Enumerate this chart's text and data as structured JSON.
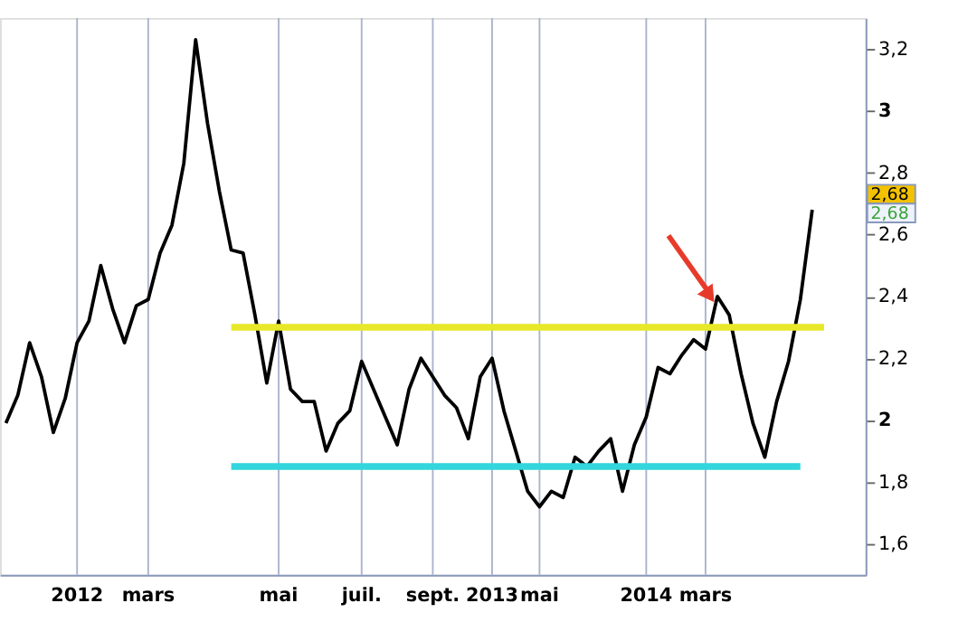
{
  "chart_data": {
    "type": "line",
    "categories": [
      null,
      null,
      null,
      null,
      null,
      null,
      "2012",
      null,
      null,
      null,
      null,
      null,
      "mars",
      null,
      null,
      null,
      null,
      null,
      null,
      null,
      null,
      null,
      null,
      "mai",
      null,
      null,
      null,
      null,
      null,
      null,
      "juil.",
      null,
      null,
      null,
      null,
      null,
      "sept.",
      null,
      null,
      null,
      null,
      "2013",
      null,
      null,
      null,
      "mai",
      null,
      null,
      null,
      null,
      null,
      null,
      null,
      null,
      "2014",
      null,
      null,
      null,
      null,
      "mars",
      null,
      null,
      null,
      null,
      null,
      null,
      null,
      null,
      null,
      null,
      null,
      null,
      null
    ],
    "series": [
      {
        "color": "#000000",
        "values": [
          1.99,
          2.08,
          2.25,
          2.14,
          1.96,
          2.07,
          2.25,
          2.32,
          2.5,
          2.36,
          2.25,
          2.37,
          2.39,
          2.54,
          2.63,
          2.83,
          3.23,
          2.96,
          2.74,
          2.55,
          2.54,
          2.34,
          2.12,
          2.32,
          2.1,
          2.06,
          2.06,
          1.9,
          1.99,
          2.03,
          2.19,
          2.1,
          2.01,
          1.92,
          2.1,
          2.2,
          2.14,
          2.08,
          2.04,
          1.94,
          2.14,
          2.2,
          2.03,
          1.9,
          1.77,
          1.72,
          1.77,
          1.75,
          1.88,
          1.85,
          1.9,
          1.94,
          1.77,
          1.92,
          2.01,
          2.17,
          2.15,
          2.21,
          2.26,
          2.23,
          2.4,
          2.34,
          2.15,
          1.99,
          1.88,
          2.06,
          2.19,
          2.39,
          2.68,
          null,
          null,
          null,
          null
        ]
      },
      {
        "color": "#e8e82a",
        "values": [
          null,
          null,
          null,
          null,
          null,
          null,
          null,
          null,
          null,
          null,
          null,
          null,
          null,
          null,
          null,
          null,
          null,
          null,
          null,
          2.3,
          2.3,
          2.3,
          2.3,
          2.3,
          2.3,
          2.3,
          2.3,
          2.3,
          2.3,
          2.3,
          2.3,
          2.3,
          2.3,
          2.3,
          2.3,
          2.3,
          2.3,
          2.3,
          2.3,
          2.3,
          2.3,
          2.3,
          2.3,
          2.3,
          2.3,
          2.3,
          2.3,
          2.3,
          2.3,
          2.3,
          2.3,
          2.3,
          2.3,
          2.3,
          2.3,
          2.3,
          2.3,
          2.3,
          2.3,
          2.3,
          2.3,
          2.3,
          2.3,
          2.3,
          2.3,
          2.3,
          2.3,
          2.3,
          2.3,
          2.3,
          null,
          null,
          null
        ]
      },
      {
        "color": "#33d6dc",
        "values": [
          null,
          null,
          null,
          null,
          null,
          null,
          null,
          null,
          null,
          null,
          null,
          null,
          null,
          null,
          null,
          null,
          null,
          null,
          null,
          1.85,
          1.85,
          1.85,
          1.85,
          1.85,
          1.85,
          1.85,
          1.85,
          1.85,
          1.85,
          1.85,
          1.85,
          1.85,
          1.85,
          1.85,
          1.85,
          1.85,
          1.85,
          1.85,
          1.85,
          1.85,
          1.85,
          1.85,
          1.85,
          1.85,
          1.85,
          1.85,
          1.85,
          1.85,
          1.85,
          1.85,
          1.85,
          1.85,
          1.85,
          1.85,
          1.85,
          1.85,
          1.85,
          1.85,
          1.85,
          1.85,
          1.85,
          1.85,
          1.85,
          1.85,
          1.85,
          1.85,
          1.85,
          1.85,
          null,
          null,
          null,
          null,
          null
        ]
      }
    ],
    "ylim": [
      1.5,
      3.3
    ],
    "yticks": [
      {
        "value": 1.6,
        "label": "1,6"
      },
      {
        "value": 1.8,
        "label": "1,8"
      },
      {
        "value": 2,
        "label": "2"
      },
      {
        "value": 2.2,
        "label": "2,2"
      },
      {
        "value": 2.4,
        "label": "2,4"
      },
      {
        "value": 2.6,
        "label": "2,6"
      },
      {
        "value": 2.8,
        "label": "2,8"
      },
      {
        "value": 3,
        "label": "3"
      },
      {
        "value": 3.2,
        "label": "3,2"
      }
    ],
    "grid": "x",
    "marker": "none",
    "line_style": "solid",
    "annotations": [
      "2,68",
      "2,68"
    ]
  }
}
